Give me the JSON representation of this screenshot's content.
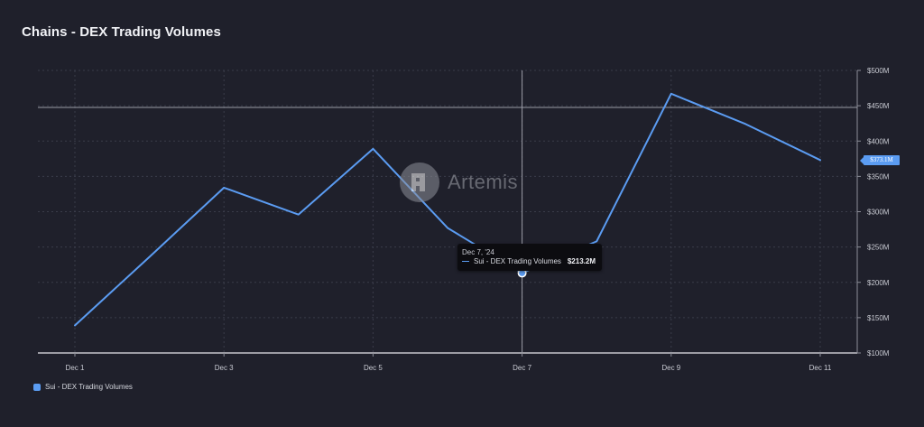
{
  "title": "Chains - DEX Trading Volumes",
  "watermark": {
    "text": "Artemis",
    "icon": "artemis-logo-icon"
  },
  "tooltip": {
    "date": "Dec 7, '24",
    "series": "Sui - DEX Trading Volumes",
    "value": "$213.2M"
  },
  "last_value_badge": "$373.1M",
  "legend": {
    "label": "Sui - DEX Trading Volumes",
    "color": "#5b9cf2"
  },
  "colors": {
    "background": "#1f202b",
    "line": "#5b9cf2",
    "grid": "#3a3c4a"
  },
  "chart_data": {
    "type": "line",
    "title": "Chains - DEX Trading Volumes",
    "xlabel": "",
    "ylabel": "",
    "x": [
      "Dec 1",
      "Dec 2",
      "Dec 3",
      "Dec 4",
      "Dec 5",
      "Dec 6",
      "Dec 7",
      "Dec 8",
      "Dec 9",
      "Dec 10",
      "Dec 11"
    ],
    "x_tick_labels": [
      "Dec 1",
      "Dec 3",
      "Dec 5",
      "Dec 7",
      "Dec 9",
      "Dec 11"
    ],
    "y_tick_labels": [
      "$100M",
      "$150M",
      "$200M",
      "$250M",
      "$300M",
      "$350M",
      "$400M",
      "$450M",
      "$500M"
    ],
    "ylim": [
      100,
      500
    ],
    "y_unit": "$M",
    "grid": true,
    "legend_position": "bottom-left",
    "series": [
      {
        "name": "Sui - DEX Trading Volumes",
        "values": [
          139,
          236,
          334,
          296,
          389,
          277,
          213.2,
          258,
          467,
          424,
          373.1
        ]
      }
    ]
  }
}
